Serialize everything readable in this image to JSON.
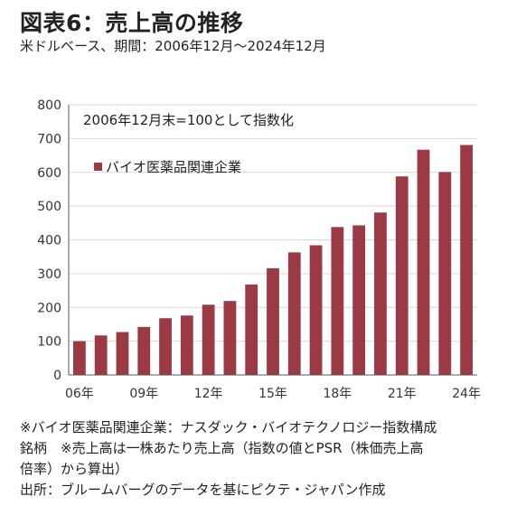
{
  "header": {
    "title": "図表6：売上高の推移",
    "subtitle": "米ドルベース、期間：2006年12月～2024年12月"
  },
  "chart_data": {
    "type": "bar",
    "annotation": "2006年12月末=100として指数化",
    "series": [
      {
        "name": "バイオ医薬品関連企業",
        "color": "#9b3a45",
        "values": [
          100,
          117,
          127,
          142,
          168,
          176,
          208,
          219,
          268,
          316,
          363,
          384,
          438,
          443,
          481,
          588,
          667,
          601,
          681
        ]
      }
    ],
    "categories": [
      "06年",
      "07年",
      "08年",
      "09年",
      "10年",
      "11年",
      "12年",
      "13年",
      "14年",
      "15年",
      "16年",
      "17年",
      "18年",
      "19年",
      "20年",
      "21年",
      "22年",
      "23年",
      "24年"
    ],
    "x_tick_labels": [
      "06年",
      "09年",
      "12年",
      "15年",
      "18年",
      "21年",
      "24年"
    ],
    "y_ticks": [
      0,
      100,
      200,
      300,
      400,
      500,
      600,
      700,
      800
    ],
    "ylim": [
      0,
      800
    ],
    "grid": true,
    "legend_position": "top-left"
  },
  "footnotes": [
    "※バイオ医薬品関連企業：ナスダック・バイオテクノロジー指数構成",
    "銘柄　※売上高は一株あたり売上高（指数の値とPSR（株価売上高",
    "倍率）から算出）",
    "出所：ブルームバーグのデータを基にピクテ・ジャパン作成"
  ]
}
